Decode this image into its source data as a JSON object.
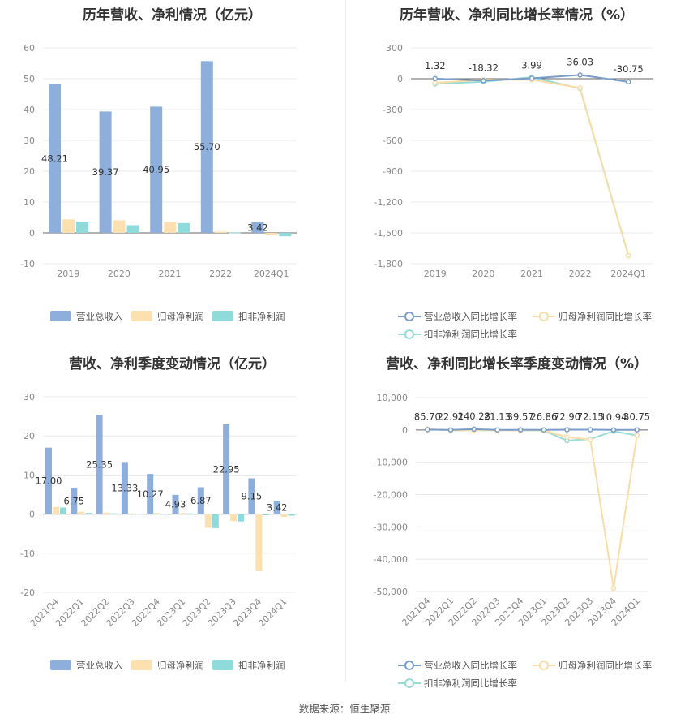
{
  "source": "数据来源：恒生聚源",
  "colors": {
    "revenue": "#8eaedc",
    "net": "#fde0b0",
    "deducted": "#8fdbdc",
    "revLine": "#7a9cca",
    "netLine": "#f9dca6",
    "dedLine": "#98dcd6"
  },
  "legend": [
    "营业总收入",
    "归母净利润",
    "扣非净利润"
  ],
  "legend_growth": [
    "营业总收入同比增长率",
    "归母净利润同比增长率",
    "扣非净利润同比增长率"
  ],
  "chart_data": [
    {
      "id": "annual-amount",
      "type": "bar",
      "title": "历年营收、净利情况（亿元）",
      "categories": [
        "2019",
        "2020",
        "2021",
        "2022",
        "2024Q1"
      ],
      "ylim": [
        -10,
        60
      ],
      "yticks": [
        -10,
        0,
        10,
        20,
        30,
        40,
        50,
        60
      ],
      "series": [
        {
          "name": "营业总收入",
          "values": [
            48.21,
            39.37,
            40.95,
            55.7,
            3.42
          ],
          "labels": [
            "48.21",
            "39.37",
            "40.95",
            "55.70",
            "3.42"
          ]
        },
        {
          "name": "归母净利润",
          "values": [
            4.4,
            4.1,
            3.6,
            0.4,
            -0.7
          ]
        },
        {
          "name": "扣非净利润",
          "values": [
            3.6,
            2.5,
            3.2,
            0.1,
            -1.1
          ]
        }
      ]
    },
    {
      "id": "annual-growth",
      "type": "line",
      "title": "历年营收、净利同比增长率情况（%）",
      "categories": [
        "2019",
        "2020",
        "2021",
        "2022",
        "2024Q1"
      ],
      "ylim": [
        -1800,
        300
      ],
      "yticks": [
        300,
        0,
        -300,
        -600,
        -900,
        -1200,
        -1500,
        -1800
      ],
      "ytick_labels": [
        "300",
        "0",
        "-300",
        "-600",
        "-900",
        "-1,200",
        "-1,500",
        "-1,800"
      ],
      "series": [
        {
          "name": "营业总收入同比增长率",
          "values": [
            1.32,
            -18.32,
            3.99,
            36.03,
            -30.75
          ],
          "labels": [
            "1.32",
            "-18.32",
            "3.99",
            "36.03",
            "-30.75"
          ]
        },
        {
          "name": "归母净利润同比增长率",
          "values": [
            -40,
            -10,
            -10,
            -90,
            -1720
          ]
        },
        {
          "name": "扣非净利润同比增长率",
          "values": [
            -50,
            -30,
            15,
            -95,
            -1720
          ]
        }
      ]
    },
    {
      "id": "quarterly-amount",
      "type": "bar",
      "title": "营收、净利季度变动情况（亿元）",
      "categories": [
        "2021Q4",
        "2022Q1",
        "2022Q2",
        "2022Q3",
        "2022Q4",
        "2023Q1",
        "2023Q2",
        "2023Q3",
        "2023Q4",
        "2024Q1"
      ],
      "ylim": [
        -20,
        30
      ],
      "yticks": [
        -20,
        -10,
        0,
        10,
        20,
        30
      ],
      "series": [
        {
          "name": "营业总收入",
          "values": [
            17.0,
            6.75,
            25.35,
            13.33,
            10.27,
            4.93,
            6.87,
            22.95,
            9.15,
            3.42
          ],
          "labels": [
            "17.00",
            "6.75",
            "25.35",
            "13.33",
            "10.27",
            "4.93",
            "6.87",
            "22.95",
            "9.15",
            "3.42"
          ]
        },
        {
          "name": "归母净利润",
          "values": [
            1.8,
            0.6,
            0.4,
            0.2,
            0.3,
            0.3,
            -3.5,
            -1.8,
            -14.6,
            -0.7
          ]
        },
        {
          "name": "扣非净利润",
          "values": [
            1.7,
            0.3,
            0.2,
            0.1,
            0.1,
            0.2,
            -3.6,
            -1.9,
            -0.3,
            -0.4
          ]
        }
      ]
    },
    {
      "id": "quarterly-growth",
      "type": "line",
      "title": "营收、净利同比增长率季度变动情况（%）",
      "categories": [
        "2021Q4",
        "2022Q1",
        "2022Q2",
        "2022Q3",
        "2022Q4",
        "2023Q1",
        "2023Q2",
        "2023Q3",
        "2023Q4",
        "2024Q1"
      ],
      "ylim": [
        -50000,
        10000
      ],
      "yticks": [
        10000,
        0,
        -10000,
        -20000,
        -30000,
        -40000,
        -50000
      ],
      "ytick_labels": [
        "10,000",
        "0",
        "-10,000",
        "-20,000",
        "-30,000",
        "-40,000",
        "-50,000"
      ],
      "series": [
        {
          "name": "营业总收入同比增长率",
          "values": [
            85.7,
            22.91,
            240.28,
            21.13,
            39.57,
            26.86,
            72.9,
            72.15,
            10.94,
            30.75
          ],
          "labels": [
            "85.70",
            "22.91",
            "240.28",
            "21.13",
            "39.57",
            "26.86",
            "72.90",
            "72.15",
            "10.94",
            "30.75"
          ]
        },
        {
          "name": "归母净利润同比增长率",
          "values": [
            300,
            -150,
            -80,
            -120,
            -90,
            -150,
            -2200,
            -3000,
            -49000,
            -1700
          ]
        },
        {
          "name": "扣非净利润同比增长率",
          "values": [
            250,
            -120,
            -60,
            -100,
            -80,
            -200,
            -3300,
            -2800,
            -400,
            -1700
          ]
        }
      ]
    }
  ]
}
